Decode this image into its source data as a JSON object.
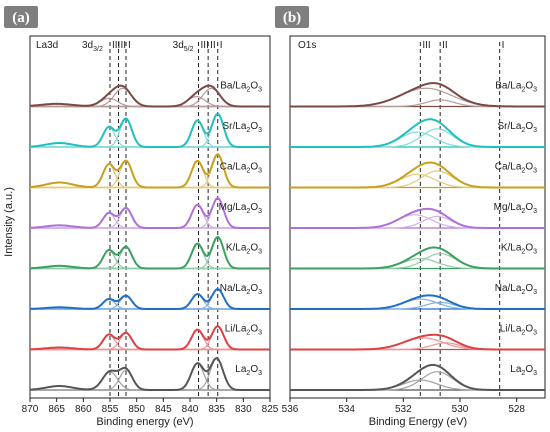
{
  "chart_data": [
    {
      "panel_tag": "(a)",
      "type": "line",
      "region_label": "La3d",
      "peak_group_labels": [
        {
          "main": "3d",
          "sub": "3/2",
          "x": 855.0
        },
        {
          "main": "3d",
          "sub": "5/2",
          "x": 838.0
        }
      ],
      "xlabel": "Binding energy (eV)",
      "ylabel": "Intensity (a.u.)",
      "xlim": [
        870,
        825
      ],
      "x_ticks": [
        870,
        865,
        860,
        855,
        850,
        845,
        840,
        835,
        830,
        825
      ],
      "reference_lines": [
        {
          "x": 855.0,
          "label": "III"
        },
        {
          "x": 853.4,
          "label": "II"
        },
        {
          "x": 852.0,
          "label": "I"
        },
        {
          "x": 838.4,
          "label": "III"
        },
        {
          "x": 836.6,
          "label": "II"
        },
        {
          "x": 834.8,
          "label": "I"
        }
      ],
      "samples": [
        {
          "name": "Ba/La",
          "sub": "2",
          "tail": "O",
          "sub2": "3",
          "color": "#7a4a45",
          "peaks": [
            {
              "c": 852.6,
              "h": 0.55,
              "w": 1.6
            },
            {
              "c": 855.2,
              "h": 0.25,
              "w": 1.6
            },
            {
              "c": 836.0,
              "h": 0.55,
              "w": 1.6
            },
            {
              "c": 838.8,
              "h": 0.3,
              "w": 1.6
            },
            {
              "c": 865.0,
              "h": 0.08,
              "w": 3.0
            }
          ]
        },
        {
          "name": "Sr/La",
          "sub": "2",
          "tail": "O",
          "sub2": "3",
          "color": "#1fc0c0",
          "peaks": [
            {
              "c": 855.2,
              "h": 0.6,
              "w": 1.1
            },
            {
              "c": 852.0,
              "h": 0.85,
              "w": 1.1
            },
            {
              "c": 838.6,
              "h": 0.8,
              "w": 1.1
            },
            {
              "c": 834.8,
              "h": 1.0,
              "w": 1.1
            },
            {
              "c": 864.5,
              "h": 0.12,
              "w": 2.5
            }
          ]
        },
        {
          "name": "Ca/La",
          "sub": "2",
          "tail": "O",
          "sub2": "3",
          "color": "#c9a01a",
          "peaks": [
            {
              "c": 855.2,
              "h": 0.7,
              "w": 1.1
            },
            {
              "c": 852.0,
              "h": 0.8,
              "w": 1.1
            },
            {
              "c": 838.6,
              "h": 0.8,
              "w": 1.1
            },
            {
              "c": 834.8,
              "h": 1.0,
              "w": 1.1
            },
            {
              "c": 864.5,
              "h": 0.15,
              "w": 2.5
            }
          ]
        },
        {
          "name": "Mg/La",
          "sub": "2",
          "tail": "O",
          "sub2": "3",
          "color": "#b070d8",
          "peaks": [
            {
              "c": 855.2,
              "h": 0.45,
              "w": 1.1
            },
            {
              "c": 852.0,
              "h": 0.6,
              "w": 1.1
            },
            {
              "c": 838.6,
              "h": 0.7,
              "w": 1.1
            },
            {
              "c": 834.8,
              "h": 0.9,
              "w": 1.1
            },
            {
              "c": 864.5,
              "h": 0.08,
              "w": 2.5
            }
          ]
        },
        {
          "name": "K/La",
          "sub": "2",
          "tail": "O",
          "sub2": "3",
          "color": "#3aa060",
          "peaks": [
            {
              "c": 855.2,
              "h": 0.55,
              "w": 1.1
            },
            {
              "c": 852.0,
              "h": 0.65,
              "w": 1.1
            },
            {
              "c": 838.6,
              "h": 0.75,
              "w": 1.1
            },
            {
              "c": 834.8,
              "h": 0.95,
              "w": 1.1
            },
            {
              "c": 864.5,
              "h": 0.08,
              "w": 2.5
            }
          ]
        },
        {
          "name": "Na/La",
          "sub": "2",
          "tail": "O",
          "sub2": "3",
          "color": "#1f6fc8",
          "peaks": [
            {
              "c": 855.2,
              "h": 0.3,
              "w": 1.1
            },
            {
              "c": 852.0,
              "h": 0.4,
              "w": 1.1
            },
            {
              "c": 838.6,
              "h": 0.45,
              "w": 1.1
            },
            {
              "c": 834.8,
              "h": 0.6,
              "w": 1.1
            },
            {
              "c": 864.5,
              "h": 0.05,
              "w": 2.5
            }
          ]
        },
        {
          "name": "Li/La",
          "sub": "2",
          "tail": "O",
          "sub2": "3",
          "color": "#e04040",
          "peaks": [
            {
              "c": 855.2,
              "h": 0.45,
              "w": 1.1
            },
            {
              "c": 852.0,
              "h": 0.5,
              "w": 1.1
            },
            {
              "c": 838.6,
              "h": 0.6,
              "w": 1.1
            },
            {
              "c": 834.8,
              "h": 0.7,
              "w": 1.1
            },
            {
              "c": 864.5,
              "h": 0.06,
              "w": 2.5
            }
          ]
        },
        {
          "name": "La",
          "sub": "2",
          "tail": "O",
          "sub2": "3",
          "color": "#555555",
          "peaks": [
            {
              "c": 855.0,
              "h": 0.55,
              "w": 1.4
            },
            {
              "c": 852.0,
              "h": 0.6,
              "w": 1.2
            },
            {
              "c": 838.6,
              "h": 0.8,
              "w": 1.2
            },
            {
              "c": 835.0,
              "h": 0.95,
              "w": 1.2
            },
            {
              "c": 864.5,
              "h": 0.12,
              "w": 2.5
            }
          ]
        }
      ]
    },
    {
      "panel_tag": "(b)",
      "type": "line",
      "region_label": "O1s",
      "xlabel": "Binding Energy (eV)",
      "ylabel": "",
      "xlim": [
        536,
        527
      ],
      "x_ticks": [
        536,
        534,
        532,
        530,
        528
      ],
      "reference_lines": [
        {
          "x": 531.4,
          "label": "III"
        },
        {
          "x": 530.7,
          "label": "II"
        },
        {
          "x": 528.6,
          "label": "I"
        }
      ],
      "samples": [
        {
          "name": "Ba/La",
          "sub": "2",
          "tail": "O",
          "sub2": "3",
          "color": "#7a4a45",
          "peaks": [
            {
              "c": 531.2,
              "h": 0.55,
              "w": 0.9
            },
            {
              "c": 530.7,
              "h": 0.2,
              "w": 0.5
            }
          ]
        },
        {
          "name": "Sr/La",
          "sub": "2",
          "tail": "O",
          "sub2": "3",
          "color": "#1fc0c0",
          "peaks": [
            {
              "c": 531.5,
              "h": 0.45,
              "w": 0.6
            },
            {
              "c": 530.8,
              "h": 0.55,
              "w": 0.55
            }
          ]
        },
        {
          "name": "Ca/La",
          "sub": "2",
          "tail": "O",
          "sub2": "3",
          "color": "#c9a01a",
          "peaks": [
            {
              "c": 531.5,
              "h": 0.4,
              "w": 0.6
            },
            {
              "c": 530.8,
              "h": 0.5,
              "w": 0.55
            }
          ]
        },
        {
          "name": "Mg/La",
          "sub": "2",
          "tail": "O",
          "sub2": "3",
          "color": "#b070d8",
          "peaks": [
            {
              "c": 531.6,
              "h": 0.4,
              "w": 0.6
            },
            {
              "c": 530.8,
              "h": 0.35,
              "w": 0.5
            }
          ]
        },
        {
          "name": "K/La",
          "sub": "2",
          "tail": "O",
          "sub2": "3",
          "color": "#3aa060",
          "peaks": [
            {
              "c": 531.4,
              "h": 0.3,
              "w": 0.6
            },
            {
              "c": 530.7,
              "h": 0.45,
              "w": 0.55
            }
          ]
        },
        {
          "name": "Na/La",
          "sub": "2",
          "tail": "O",
          "sub2": "3",
          "color": "#1f6fc8",
          "peaks": [
            {
              "c": 531.4,
              "h": 0.3,
              "w": 0.6
            },
            {
              "c": 530.7,
              "h": 0.2,
              "w": 0.5
            }
          ]
        },
        {
          "name": "Li/La",
          "sub": "2",
          "tail": "O",
          "sub2": "3",
          "color": "#e04040",
          "peaks": [
            {
              "c": 531.3,
              "h": 0.35,
              "w": 0.7
            },
            {
              "c": 530.5,
              "h": 0.2,
              "w": 0.5
            }
          ]
        },
        {
          "name": "La",
          "sub": "2",
          "tail": "O",
          "sub2": "3",
          "color": "#555555",
          "peaks": [
            {
              "c": 531.4,
              "h": 0.3,
              "w": 0.6
            },
            {
              "c": 530.8,
              "h": 0.55,
              "w": 0.55
            }
          ]
        }
      ]
    }
  ],
  "theme": {
    "panel_tag_bg": "#7f7f7f",
    "axis_color": "#222222",
    "background": "#ffffff"
  }
}
